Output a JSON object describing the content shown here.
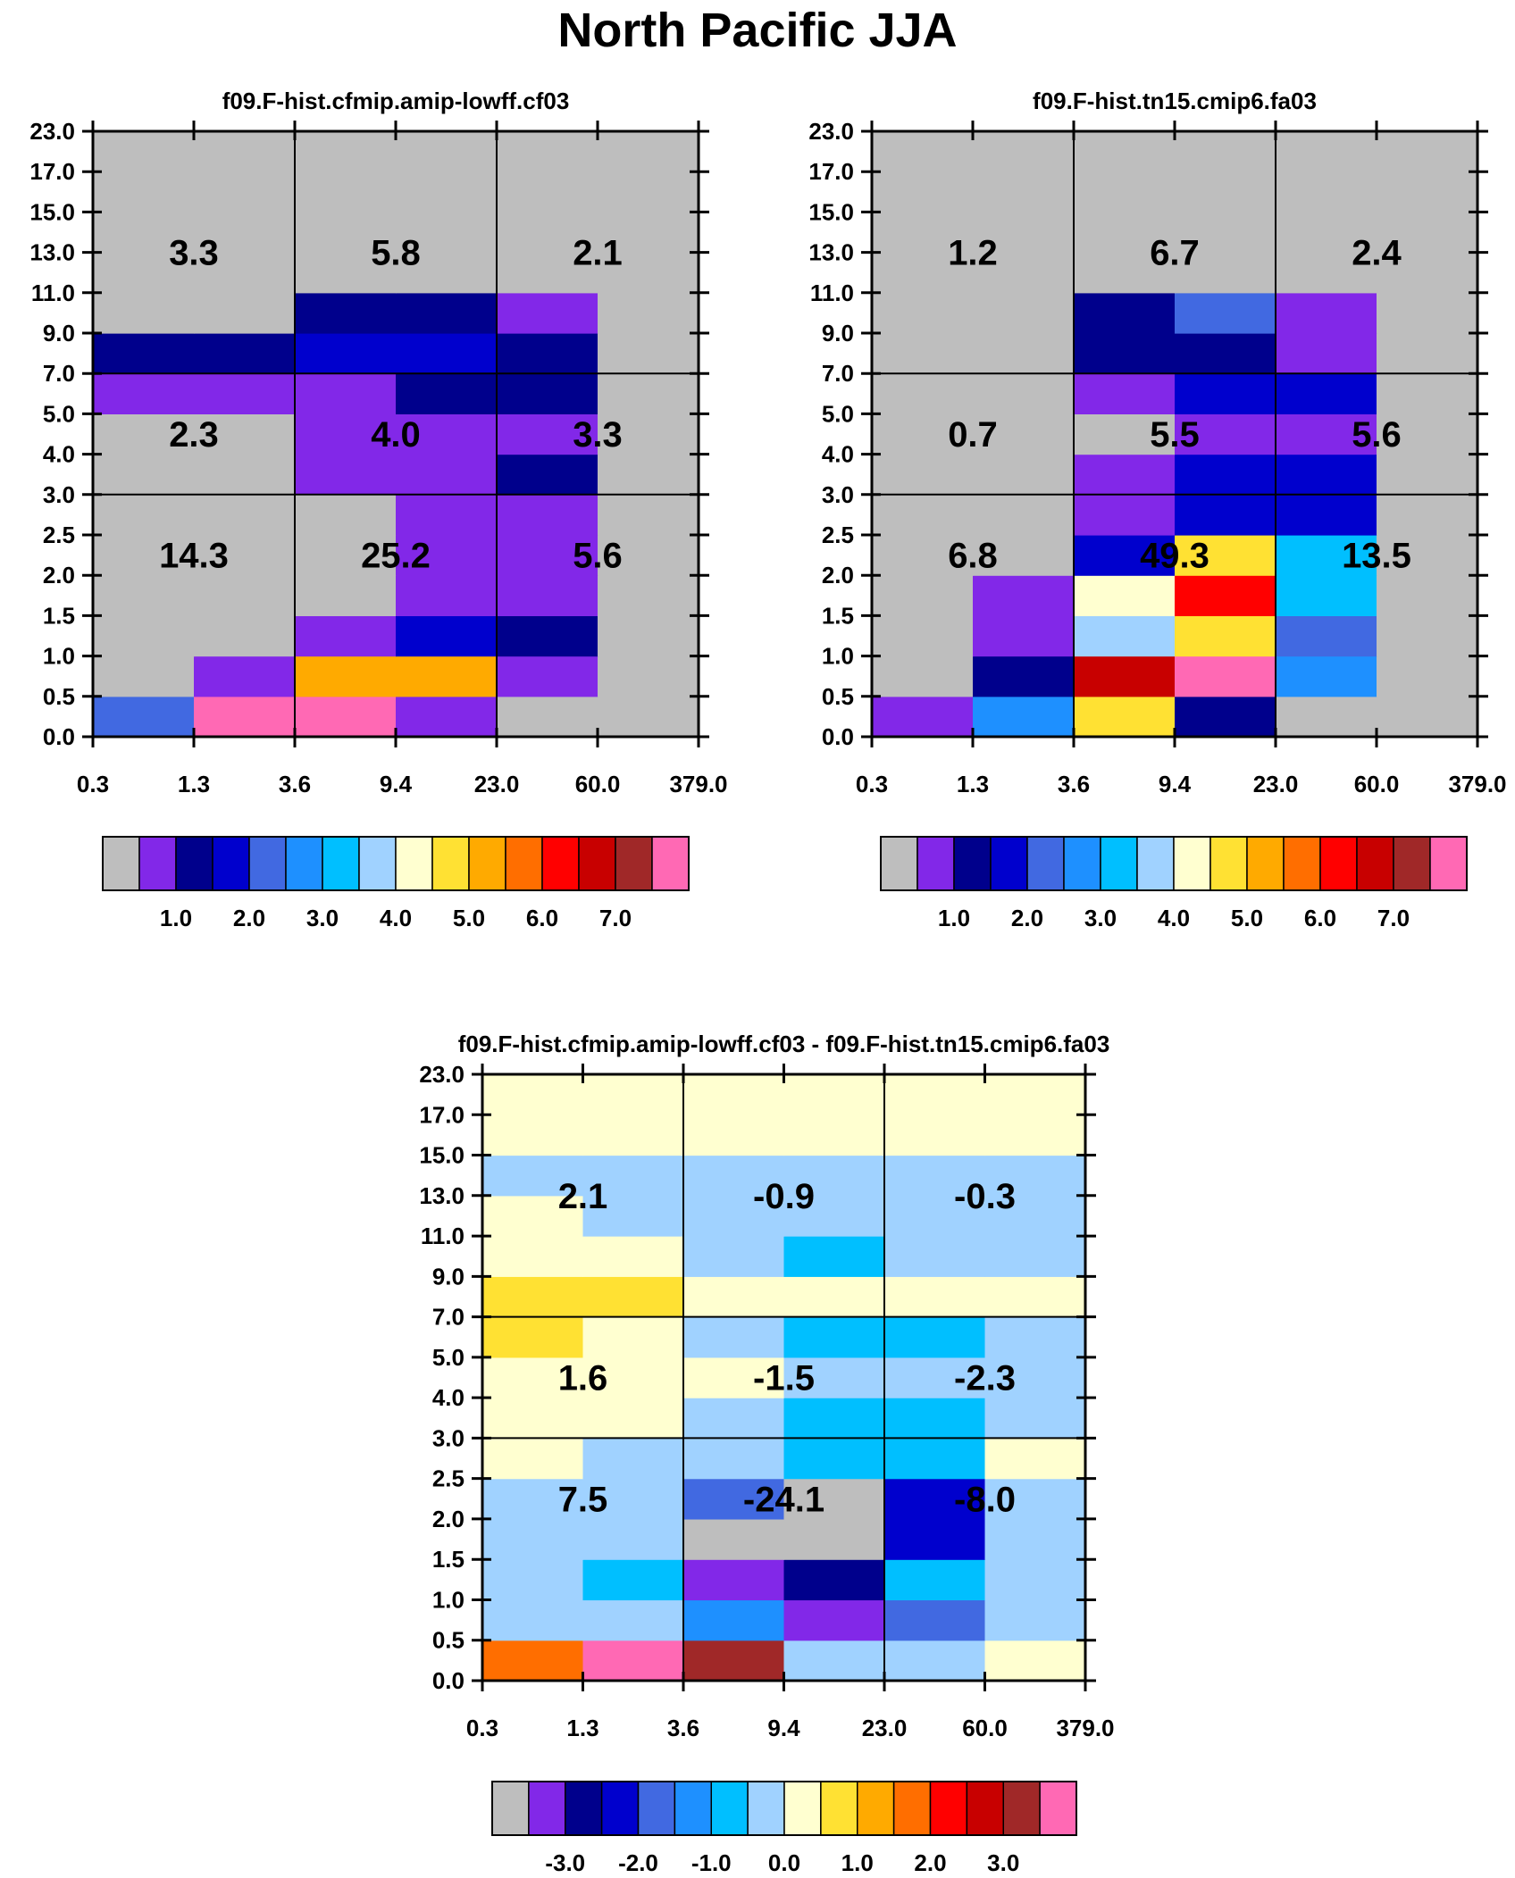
{
  "title": "North Pacific JJA",
  "chart_data": {
    "type": "heatmap",
    "y_edges": [
      "0.0",
      "0.5",
      "1.0",
      "1.5",
      "2.0",
      "2.5",
      "3.0",
      "4.0",
      "5.0",
      "7.0",
      "9.0",
      "11.0",
      "13.0",
      "15.0",
      "17.0",
      "23.0"
    ],
    "x_edges": [
      "0.3",
      "1.3",
      "3.6",
      "9.4",
      "23.0",
      "60.0",
      "379.0"
    ],
    "levels": {
      "colors": [
        "#bebebe",
        "#8228e8",
        "#00008c",
        "#0000cd",
        "#4169e1",
        "#1e90ff",
        "#00bfff",
        "#a0d2ff",
        "#ffffd0",
        "#ffe133",
        "#ffaa00",
        "#ff6e00",
        "#ff0000",
        "#c80000",
        "#a02828",
        "#ff69b4"
      ]
    },
    "panels": [
      {
        "id": "model-a",
        "title": "f09.F-hist.cfmip.amip-lowff.cf03",
        "colorbar_labels": [
          "1.0",
          "2.0",
          "3.0",
          "4.0",
          "5.0",
          "6.0",
          "7.0"
        ],
        "grid": [
          [
            4,
            15,
            15,
            1,
            0,
            0
          ],
          [
            0,
            1,
            10,
            10,
            1,
            0
          ],
          [
            0,
            0,
            1,
            3,
            2,
            0
          ],
          [
            0,
            0,
            0,
            1,
            1,
            0
          ],
          [
            0,
            0,
            0,
            1,
            1,
            0
          ],
          [
            0,
            0,
            0,
            1,
            1,
            0
          ],
          [
            0,
            0,
            1,
            1,
            2,
            0
          ],
          [
            0,
            0,
            1,
            1,
            1,
            0
          ],
          [
            1,
            1,
            1,
            2,
            2,
            0
          ],
          [
            2,
            2,
            3,
            3,
            2,
            0
          ],
          [
            0,
            0,
            2,
            2,
            1,
            0
          ],
          [
            0,
            0,
            0,
            0,
            0,
            0
          ],
          [
            0,
            0,
            0,
            0,
            0,
            0
          ],
          [
            0,
            0,
            0,
            0,
            0,
            0
          ],
          [
            0,
            0,
            0,
            0,
            0,
            0
          ]
        ],
        "box_values": [
          [
            "14.3",
            "25.2",
            "5.6"
          ],
          [
            "2.3",
            "4.0",
            "3.3"
          ],
          [
            "3.3",
            "5.8",
            "2.1"
          ]
        ]
      },
      {
        "id": "model-b",
        "title": "f09.F-hist.tn15.cmip6.fa03",
        "colorbar_labels": [
          "1.0",
          "2.0",
          "3.0",
          "4.0",
          "5.0",
          "6.0",
          "7.0"
        ],
        "grid": [
          [
            1,
            5,
            9,
            2,
            0,
            0
          ],
          [
            0,
            2,
            13,
            15,
            5,
            0
          ],
          [
            0,
            1,
            7,
            9,
            4,
            0
          ],
          [
            0,
            1,
            8,
            12,
            6,
            0
          ],
          [
            0,
            0,
            3,
            9,
            6,
            0
          ],
          [
            0,
            0,
            1,
            3,
            3,
            0
          ],
          [
            0,
            0,
            1,
            3,
            3,
            0
          ],
          [
            0,
            0,
            0,
            1,
            1,
            0
          ],
          [
            0,
            0,
            1,
            3,
            3,
            0
          ],
          [
            0,
            0,
            2,
            2,
            1,
            0
          ],
          [
            0,
            0,
            2,
            4,
            1,
            0
          ],
          [
            0,
            0,
            0,
            0,
            0,
            0
          ],
          [
            0,
            0,
            0,
            0,
            0,
            0
          ],
          [
            0,
            0,
            0,
            0,
            0,
            0
          ],
          [
            0,
            0,
            0,
            0,
            0,
            0
          ]
        ],
        "box_values": [
          [
            "6.8",
            "49.3",
            "13.5"
          ],
          [
            "0.7",
            "5.5",
            "5.6"
          ],
          [
            "1.2",
            "6.7",
            "2.4"
          ]
        ]
      },
      {
        "id": "difference",
        "title": "f09.F-hist.cfmip.amip-lowff.cf03 - f09.F-hist.tn15.cmip6.fa03",
        "colorbar_labels": [
          "-3.0",
          "-2.0",
          "-1.0",
          "0.0",
          "1.0",
          "2.0",
          "3.0"
        ],
        "grid": [
          [
            11,
            15,
            14,
            7,
            7,
            8
          ],
          [
            7,
            7,
            5,
            1,
            4,
            7
          ],
          [
            7,
            6,
            1,
            2,
            6,
            7
          ],
          [
            7,
            7,
            0,
            0,
            3,
            7
          ],
          [
            7,
            7,
            4,
            0,
            3,
            7
          ],
          [
            8,
            7,
            7,
            6,
            6,
            8
          ],
          [
            8,
            8,
            7,
            6,
            6,
            7
          ],
          [
            8,
            8,
            8,
            7,
            7,
            7
          ],
          [
            9,
            8,
            7,
            6,
            6,
            7
          ],
          [
            9,
            9,
            8,
            8,
            8,
            8
          ],
          [
            8,
            8,
            7,
            6,
            7,
            7
          ],
          [
            8,
            7,
            7,
            7,
            7,
            7
          ],
          [
            7,
            7,
            7,
            7,
            7,
            7
          ],
          [
            8,
            8,
            8,
            8,
            8,
            8
          ],
          [
            8,
            8,
            8,
            8,
            8,
            8
          ]
        ],
        "box_values": [
          [
            "7.5",
            "-24.1",
            "-8.0"
          ],
          [
            "1.6",
            "-1.5",
            "-2.3"
          ],
          [
            "2.1",
            "-0.9",
            "-0.3"
          ]
        ]
      }
    ]
  }
}
